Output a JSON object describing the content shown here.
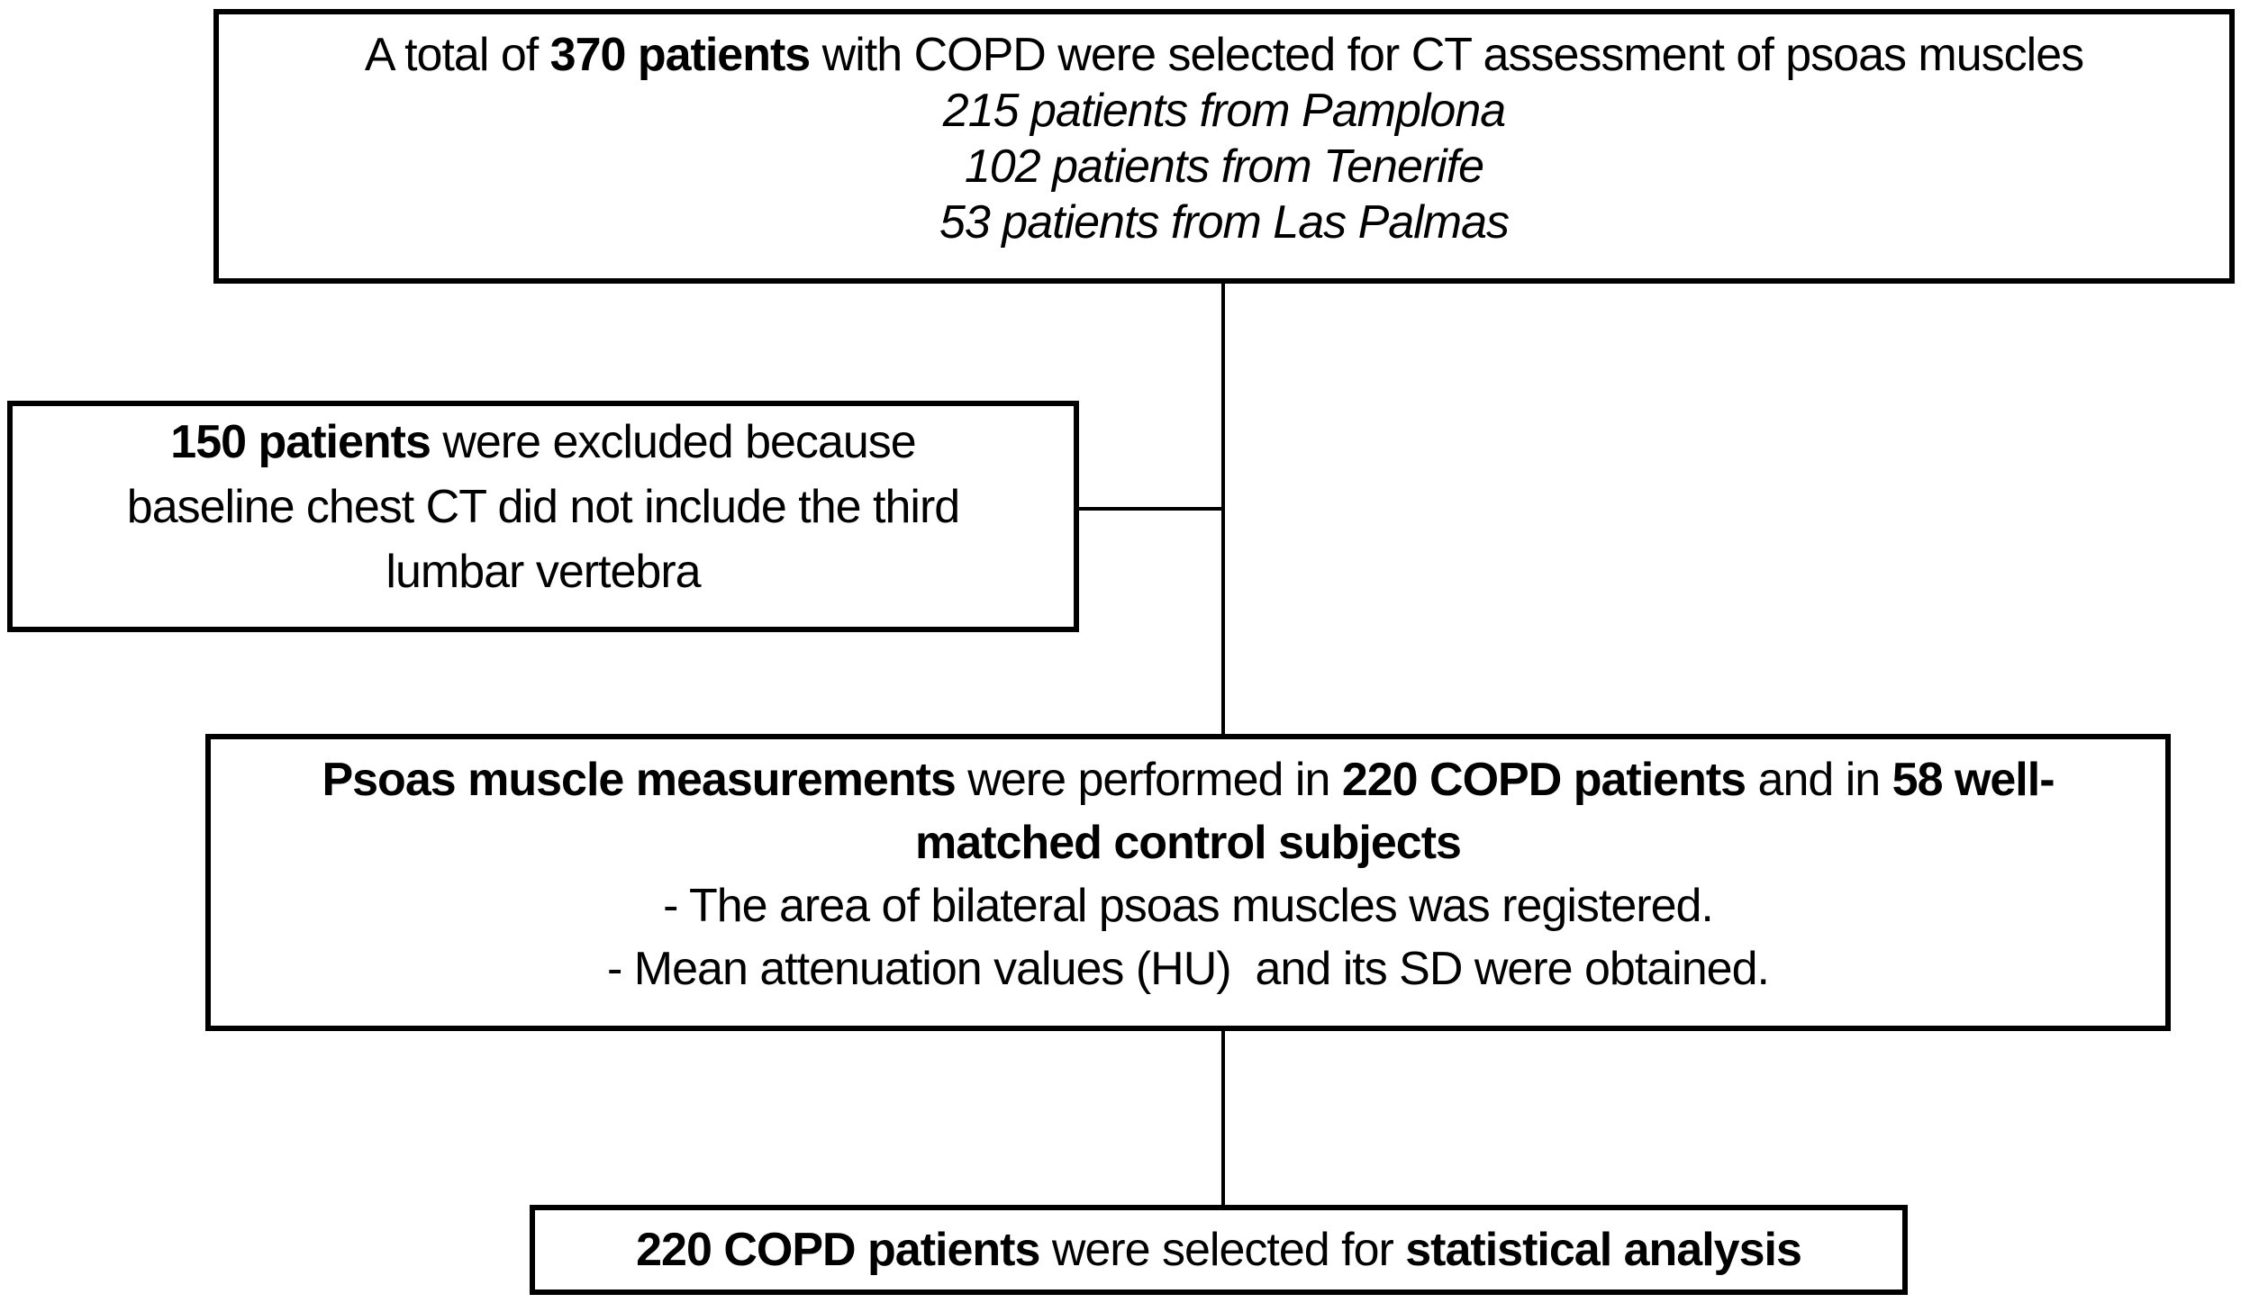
{
  "boxes": {
    "top": {
      "line1": [
        "A total of ",
        "370 patients",
        " with COPD were selected for CT assessment of psoas muscles"
      ],
      "subline1": "215 patients from Pamplona",
      "subline2": "102 patients from Tenerife",
      "subline3": "53 patients from Las Palmas"
    },
    "excluded": {
      "line1": [
        "150 patients",
        " were excluded because"
      ],
      "line2": "baseline chest CT did not include the third",
      "line3": "lumbar vertebra"
    },
    "measurements": {
      "line1": [
        "Psoas muscle measurements",
        " were performed in ",
        "220 COPD patients",
        " and in ",
        "58 well-"
      ],
      "line2": "matched control subjects",
      "bullet1": "- The area of bilateral psoas muscles was registered.",
      "bullet2": "- Mean attenuation values (HU)  and its SD were obtained."
    },
    "final": {
      "line1": [
        "220 COPD patients",
        " were selected for ",
        "statistical analysis"
      ]
    }
  },
  "colors": {
    "border": "#000000",
    "text": "#000000",
    "background": "#ffffff"
  }
}
